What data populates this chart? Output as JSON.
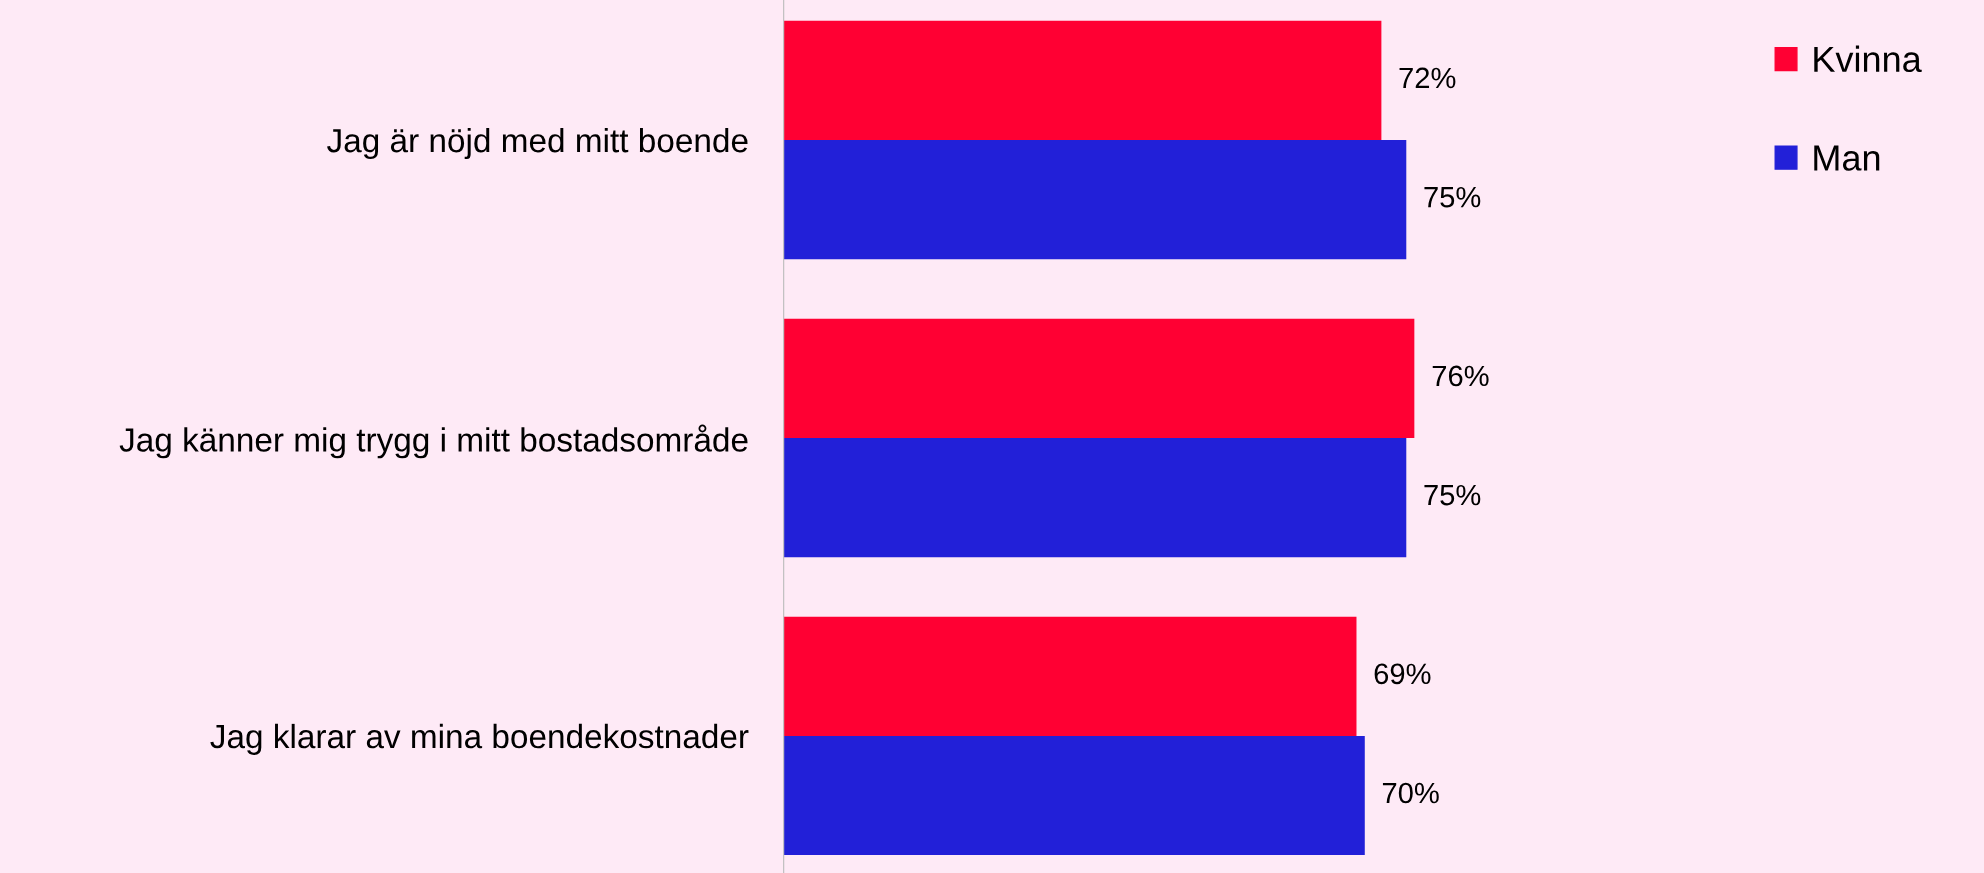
{
  "chart_data": {
    "type": "bar",
    "orientation": "horizontal",
    "categories": [
      "Jag är nöjd med mitt boende",
      "Jag känner mig trygg i mitt bostadsområde",
      "Jag klarar av mina boendekostnader"
    ],
    "series": [
      {
        "name": "Kvinna",
        "color": "#ff0033",
        "values": [
          72,
          76,
          69
        ],
        "value_labels": [
          "72%",
          "76%",
          "69%"
        ]
      },
      {
        "name": "Man",
        "color": "#2220d8",
        "values": [
          75,
          75,
          70
        ],
        "value_labels": [
          "75%",
          "75%",
          "70%"
        ]
      }
    ],
    "tick_labels": "y",
    "grid": false,
    "legend": "top right"
  }
}
